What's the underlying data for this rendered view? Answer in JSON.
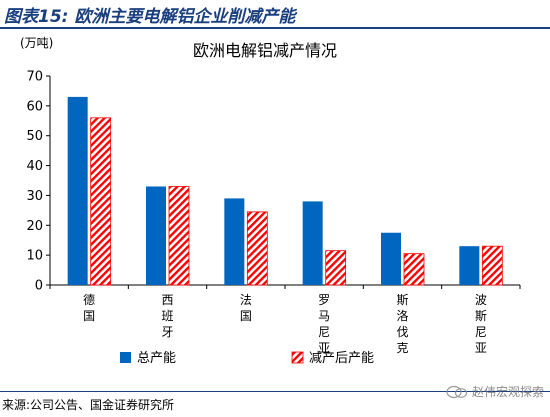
{
  "figure": {
    "label": "图表15:",
    "title": "欧洲主要电解铝企业削减产能",
    "source": "来源:公司公告、国金证券研究所",
    "watermark": "赵伟宏观探索"
  },
  "chart_data": {
    "type": "bar",
    "title": "欧洲电解铝减产情况",
    "unit_label": "(万吨)",
    "categories": [
      "德国",
      "西班牙",
      "法国",
      "罗马尼亚",
      "斯洛伐克",
      "波斯尼亚"
    ],
    "series": [
      {
        "name": "总产能",
        "values": [
          63,
          33,
          29,
          28,
          17.5,
          13
        ],
        "color": "#0066bf",
        "pattern": "solid"
      },
      {
        "name": "减产后产能",
        "values": [
          56,
          33,
          24.5,
          11.5,
          10.5,
          13
        ],
        "color": "#ff0000",
        "pattern": "diagonal-hatch"
      }
    ],
    "ylim": [
      0,
      70
    ],
    "yticks": [
      0,
      10,
      20,
      30,
      40,
      50,
      60,
      70
    ],
    "grid": false,
    "legend_position": "bottom"
  }
}
